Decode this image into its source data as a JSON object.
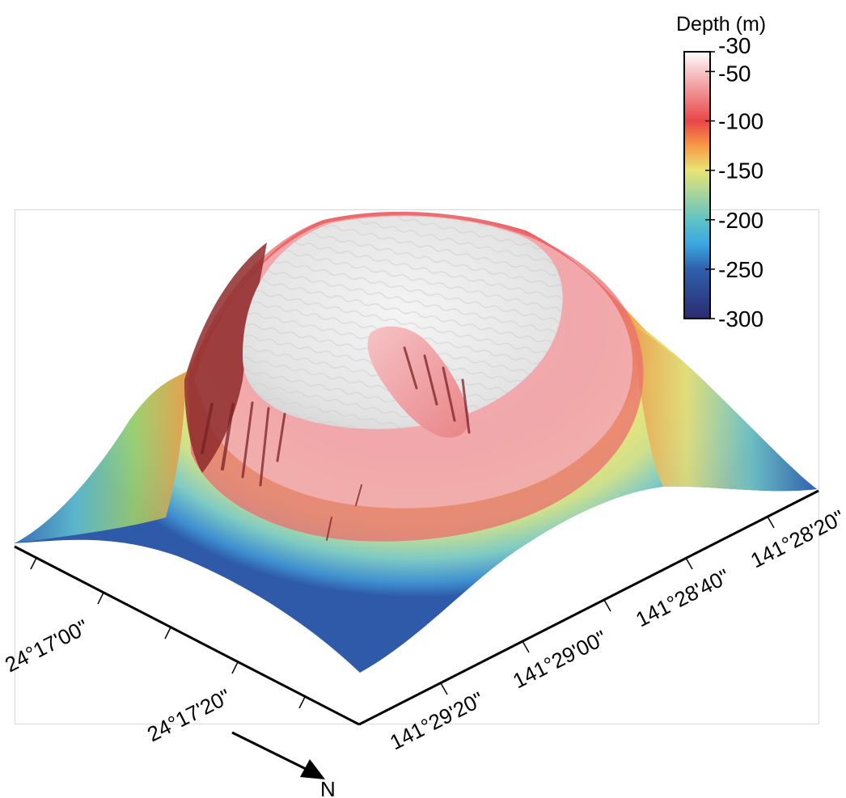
{
  "colorbar": {
    "title": "Depth (m)",
    "ticks": [
      "-30",
      "-50",
      "-100",
      "-150",
      "-200",
      "-250",
      "-300"
    ],
    "stops": [
      {
        "depth": -30,
        "color": "#ffffff"
      },
      {
        "depth": -50,
        "color": "#f6c6c8"
      },
      {
        "depth": -100,
        "color": "#e84648"
      },
      {
        "depth": -125,
        "color": "#f79a45"
      },
      {
        "depth": -150,
        "color": "#e9e474"
      },
      {
        "depth": -200,
        "color": "#5fc3c6"
      },
      {
        "depth": -225,
        "color": "#3aa7e0"
      },
      {
        "depth": -250,
        "color": "#2f5fae"
      },
      {
        "depth": -300,
        "color": "#2b2c6e"
      }
    ]
  },
  "axes": {
    "latitude_labels": [
      "24°17'00\"",
      "24°17'20\""
    ],
    "longitude_labels": [
      "141°29'20\"",
      "141°29'00\"",
      "141°28'40\"",
      "141°28'20\""
    ]
  },
  "north_arrow": {
    "label": "N"
  },
  "relief": {
    "summit_color": "#eeeeee",
    "shadow_color": "#8e2a2c"
  }
}
